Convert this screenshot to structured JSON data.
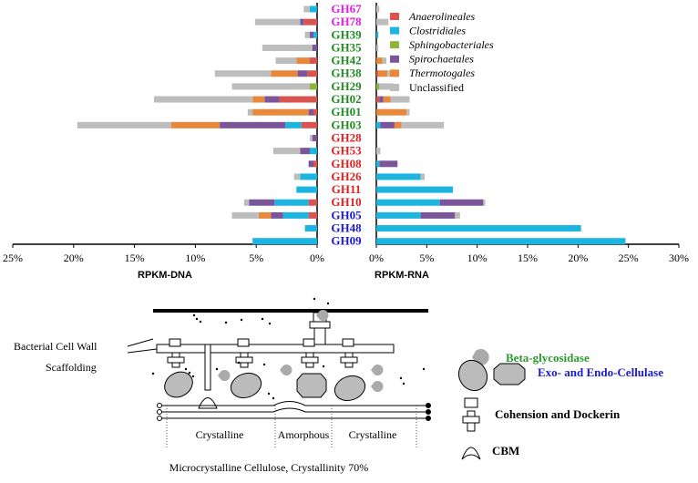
{
  "chart_data": {
    "type": "bar",
    "orientation": "horizontal",
    "stacked": true,
    "categories": [
      "GH67",
      "GH78",
      "GH39",
      "GH35",
      "GH42",
      "GH38",
      "GH29",
      "GH02",
      "GH01",
      "GH03",
      "GH28",
      "GH53",
      "GH08",
      "GH26",
      "GH11",
      "GH10",
      "GH05",
      "GH48",
      "GH09"
    ],
    "category_colors": [
      "#e020e0",
      "#e020e0",
      "#228b22",
      "#228b22",
      "#228b22",
      "#228b22",
      "#228b22",
      "#228b22",
      "#228b22",
      "#228b22",
      "#e02020",
      "#e02020",
      "#e02020",
      "#e02020",
      "#e02020",
      "#e02020",
      "#1a1ad0",
      "#1a1ad0",
      "#1a1ad0"
    ],
    "series": [
      {
        "name": "Anaerolineales",
        "color": "#d9534f",
        "dna": [
          0,
          1.1,
          0,
          0,
          0.6,
          0.8,
          0,
          3.1,
          0.3,
          1.3,
          0,
          0,
          0.3,
          0,
          0,
          0.7,
          0.7,
          0,
          0
        ],
        "rna": [
          0,
          0,
          0,
          0,
          0,
          0.2,
          0,
          0.3,
          0,
          0,
          0,
          0,
          0,
          0,
          0,
          0,
          0,
          0,
          0
        ]
      },
      {
        "name": "Clostridiales",
        "color": "#1cb5e0",
        "dna": [
          0.6,
          0,
          0.3,
          0,
          0,
          0,
          0,
          0,
          0,
          1.3,
          0,
          0.6,
          0,
          1.4,
          1.7,
          2.8,
          2.1,
          1.0,
          5.3
        ],
        "rna": [
          0,
          0,
          0.2,
          0,
          0,
          0,
          0,
          0,
          0,
          0.4,
          0,
          0,
          0.3,
          4.4,
          7.6,
          6.3,
          4.4,
          20.3,
          24.7
        ]
      },
      {
        "name": "Sphingobacteriales",
        "color": "#8db33a",
        "dna": [
          0,
          0,
          0,
          0,
          0,
          0,
          0.6,
          0,
          0,
          0,
          0,
          0,
          0,
          0,
          0,
          0,
          0,
          0,
          0
        ],
        "rna": [
          0,
          0,
          0,
          0,
          0,
          0,
          0.3,
          0,
          0,
          0,
          0,
          0,
          0,
          0,
          0,
          0,
          0,
          0,
          0
        ]
      },
      {
        "name": "Spirochaetales",
        "color": "#7a559a",
        "dna": [
          0,
          0.3,
          0.3,
          0.4,
          0,
          0.8,
          0,
          1.2,
          0.4,
          5.4,
          0.4,
          0.8,
          0.4,
          0,
          0,
          2.1,
          1.0,
          0,
          0
        ],
        "rna": [
          0,
          0,
          0,
          0,
          0,
          0,
          0,
          0.4,
          0,
          1.4,
          0,
          0,
          1.8,
          0,
          0,
          4.3,
          3.4,
          0,
          0
        ]
      },
      {
        "name": "Thermotogales",
        "color": "#e8883a",
        "dna": [
          0,
          0,
          0,
          0,
          1.1,
          2.2,
          0,
          1.0,
          4.6,
          4.0,
          0,
          0,
          0,
          0,
          0,
          0,
          1.0,
          0,
          0
        ],
        "rna": [
          0,
          0,
          0,
          0,
          0.6,
          0.9,
          0,
          0.7,
          3.0,
          0.7,
          0,
          0,
          0,
          0,
          0,
          0,
          0,
          0,
          0
        ]
      },
      {
        "name": "Unclassified",
        "color": "#bdbdbd",
        "dna": [
          0.5,
          3.7,
          0.4,
          4.1,
          1.7,
          4.6,
          6.4,
          8.1,
          0.4,
          7.7,
          0.2,
          2.2,
          0,
          0.5,
          0,
          0.4,
          2.2,
          0,
          0
        ],
        "rna": [
          0.3,
          1.2,
          0,
          0.2,
          0.4,
          0.4,
          1.4,
          1.9,
          0.3,
          4.2,
          0,
          0.4,
          0,
          0.4,
          0,
          0.2,
          0.5,
          0,
          0
        ]
      }
    ],
    "dna_axis": {
      "label": "RPKM-DNA",
      "xlim": [
        25,
        0
      ],
      "xticks": [
        {
          "value": 25,
          "label": "25%"
        },
        {
          "value": 20,
          "label": "20%"
        },
        {
          "value": 15,
          "label": "15%"
        },
        {
          "value": 10,
          "label": "10%"
        },
        {
          "value": 5,
          "label": "5%"
        },
        {
          "value": 0,
          "label": "0%"
        }
      ]
    },
    "rna_axis": {
      "label": "RPKM-RNA",
      "xlim": [
        0,
        30
      ],
      "xticks": [
        {
          "value": 0,
          "label": "0%"
        },
        {
          "value": 5,
          "label": "5%"
        },
        {
          "value": 10,
          "label": "10%"
        },
        {
          "value": 15,
          "label": "15%"
        },
        {
          "value": 20,
          "label": "20%"
        },
        {
          "value": 25,
          "label": "25%"
        },
        {
          "value": 30,
          "label": "30%"
        }
      ]
    }
  },
  "diagram": {
    "labels": {
      "cell_wall": "Bacterial Cell Wall",
      "scaffolding": "Scaffolding",
      "crystalline_1": "Crystalline",
      "amorphous": "Amorphous",
      "crystalline_2": "Crystalline",
      "caption": "Microcrystalline Cellulose, Crystallinity 70%"
    },
    "legend": {
      "beta": "Beta-glycosidase",
      "cellulase": "Exo- and Endo-Cellulase",
      "cohesion": "Cohension and Dockerin",
      "cbm": "CBM"
    }
  }
}
